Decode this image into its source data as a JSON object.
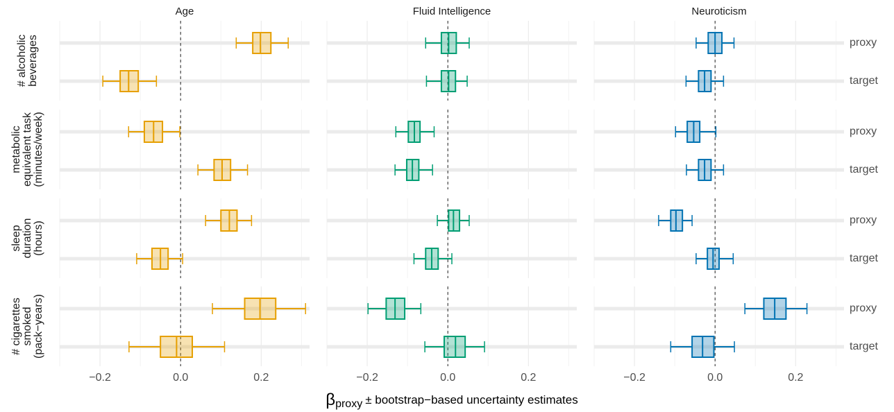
{
  "chart_data": [
    {
      "type": "box",
      "title": "Age",
      "color": "#E69F00",
      "xlim": [
        -0.3,
        0.32
      ],
      "xticks": [
        {
          "value": -0.2,
          "label": "−0.2"
        },
        {
          "value": 0,
          "label": "0.0"
        },
        {
          "value": 0.2,
          "label": "0.2"
        }
      ],
      "minor_xticks": [
        -0.3,
        -0.1,
        0.1,
        0.3
      ],
      "reference_line": 0,
      "boxes": [
        {
          "whislo": 0.138,
          "q1": 0.179,
          "med": 0.198,
          "q3": 0.224,
          "whishi": 0.267
        },
        {
          "whislo": -0.193,
          "q1": -0.15,
          "med": -0.129,
          "q3": -0.105,
          "whishi": -0.06
        },
        {
          "whislo": -0.129,
          "q1": -0.09,
          "med": -0.067,
          "q3": -0.045,
          "whishi": -0.002
        },
        {
          "whislo": 0.043,
          "q1": 0.083,
          "med": 0.103,
          "q3": 0.124,
          "whishi": 0.166
        },
        {
          "whislo": 0.062,
          "q1": 0.1,
          "med": 0.121,
          "q3": 0.14,
          "whishi": 0.176
        },
        {
          "whislo": -0.109,
          "q1": -0.071,
          "med": -0.05,
          "q3": -0.031,
          "whishi": 0.005
        },
        {
          "whislo": 0.079,
          "q1": 0.159,
          "med": 0.197,
          "q3": 0.236,
          "whishi": 0.31
        },
        {
          "whislo": -0.128,
          "q1": -0.05,
          "med": -0.01,
          "q3": 0.029,
          "whishi": 0.109
        }
      ]
    },
    {
      "type": "box",
      "title": "Fluid Intelligence",
      "color": "#009E73",
      "xlim": [
        -0.3,
        0.32
      ],
      "xticks": [
        {
          "value": -0.2,
          "label": "−0.2"
        },
        {
          "value": 0,
          "label": "0.0"
        },
        {
          "value": 0.2,
          "label": "0.2"
        }
      ],
      "minor_xticks": [
        -0.3,
        -0.1,
        0.1,
        0.3
      ],
      "reference_line": 0,
      "boxes": [
        {
          "whislo": -0.055,
          "q1": -0.016,
          "med": 0.002,
          "q3": 0.021,
          "whishi": 0.053
        },
        {
          "whislo": -0.053,
          "q1": -0.016,
          "med": 0.002,
          "q3": 0.019,
          "whishi": 0.048
        },
        {
          "whislo": -0.129,
          "q1": -0.098,
          "med": -0.083,
          "q3": -0.069,
          "whishi": -0.034
        },
        {
          "whislo": -0.131,
          "q1": -0.102,
          "med": -0.088,
          "q3": -0.072,
          "whishi": -0.038
        },
        {
          "whislo": -0.026,
          "q1": 0.002,
          "med": 0.014,
          "q3": 0.029,
          "whishi": 0.053
        },
        {
          "whislo": -0.084,
          "q1": -0.055,
          "med": -0.04,
          "q3": -0.024,
          "whishi": 0.01
        },
        {
          "whislo": -0.198,
          "q1": -0.153,
          "med": -0.131,
          "q3": -0.107,
          "whishi": -0.067
        },
        {
          "whislo": -0.057,
          "q1": -0.009,
          "med": 0.019,
          "q3": 0.043,
          "whishi": 0.091
        }
      ]
    },
    {
      "type": "box",
      "title": "Neuroticism",
      "color": "#0072B2",
      "xlim": [
        -0.3,
        0.32
      ],
      "xticks": [
        {
          "value": -0.2,
          "label": "−0.2"
        },
        {
          "value": 0,
          "label": "0.0"
        },
        {
          "value": 0.2,
          "label": "0.2"
        }
      ],
      "minor_xticks": [
        -0.3,
        -0.1,
        0.1,
        0.3
      ],
      "reference_line": 0,
      "boxes": [
        {
          "whislo": -0.047,
          "q1": -0.017,
          "med": 0,
          "q3": 0.017,
          "whishi": 0.047
        },
        {
          "whislo": -0.072,
          "q1": -0.041,
          "med": -0.026,
          "q3": -0.01,
          "whishi": 0.021
        },
        {
          "whislo": -0.098,
          "q1": -0.069,
          "med": -0.053,
          "q3": -0.038,
          "whishi": 0.002
        },
        {
          "whislo": -0.071,
          "q1": -0.041,
          "med": -0.026,
          "q3": -0.01,
          "whishi": 0.021
        },
        {
          "whislo": -0.14,
          "q1": -0.11,
          "med": -0.097,
          "q3": -0.081,
          "whishi": -0.057
        },
        {
          "whislo": -0.047,
          "q1": -0.019,
          "med": -0.005,
          "q3": 0.01,
          "whishi": 0.045
        },
        {
          "whislo": 0.074,
          "q1": 0.121,
          "med": 0.148,
          "q3": 0.176,
          "whishi": 0.228
        },
        {
          "whislo": -0.11,
          "q1": -0.057,
          "med": -0.031,
          "q3": -0.003,
          "whishi": 0.048
        }
      ]
    }
  ],
  "row_groups": [
    {
      "label": [
        "# alcoholic",
        "beverages"
      ]
    },
    {
      "label": [
        "metabolic",
        "equivalent task",
        "(minutes/week)"
      ]
    },
    {
      "label": [
        "sleep",
        "duration",
        "(hours)"
      ]
    },
    {
      "label": [
        "# cigarettes",
        "smoked",
        "(pack−years)"
      ]
    }
  ],
  "row_levels": [
    "proxy",
    "target"
  ],
  "xlabel": {
    "symbol": "β",
    "subscript": "proxy",
    "text": "± bootstrap−based uncertainty estimates"
  }
}
